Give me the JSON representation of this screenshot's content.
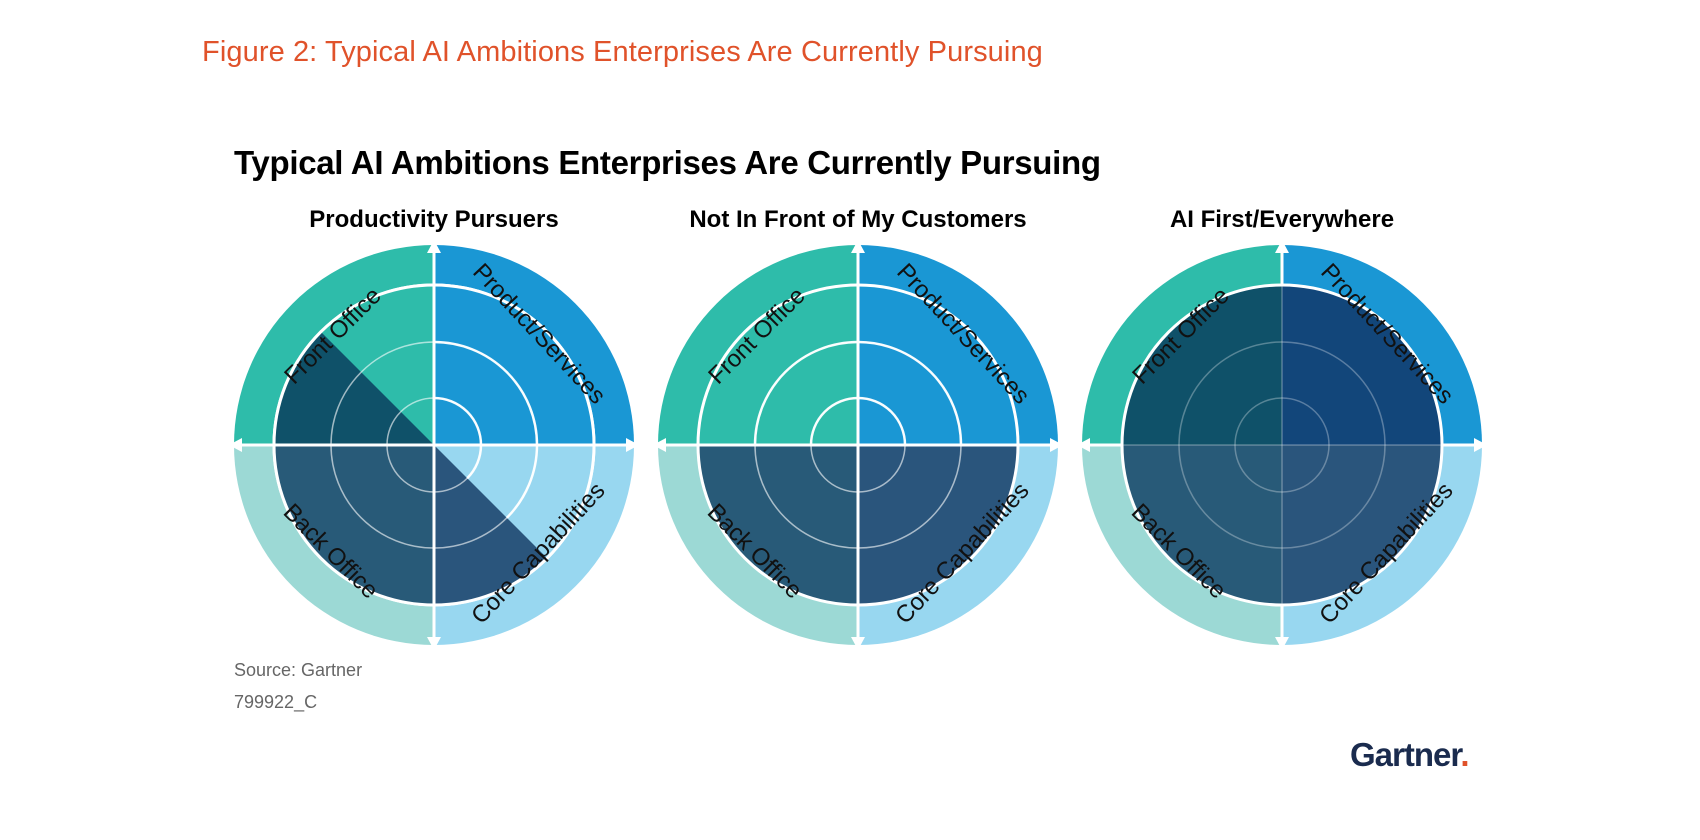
{
  "figure_caption": "Figure 2: Typical AI Ambitions Enterprises Are Currently Pursuing",
  "title": "Typical AI Ambitions Enterprises Are Currently Pursuing",
  "quadrant_labels": {
    "front_office": "Front Office",
    "product_services": "Product/Services",
    "back_office": "Back Office",
    "core_capabilities": "Core Capabilities"
  },
  "panels": [
    {
      "title": "Productivity Pursuers"
    },
    {
      "title": "Not In Front of My Customers"
    },
    {
      "title": "AI First/Everywhere"
    }
  ],
  "colors": {
    "caption": "#e0522a",
    "front_office_ring": "#2ebcaa",
    "product_ring": "#1a97d4",
    "back_office_ring": "#9cd9d5",
    "core_ring": "#98d7f0",
    "dark_teal": "#0f5169",
    "dark_blue": "#12467a",
    "slate": "#285a78",
    "slate_blue": "#2a557c"
  },
  "source": "Source: Gartner",
  "code": "799922_C",
  "logo_text": "Gartner",
  "logo_mark": "."
}
